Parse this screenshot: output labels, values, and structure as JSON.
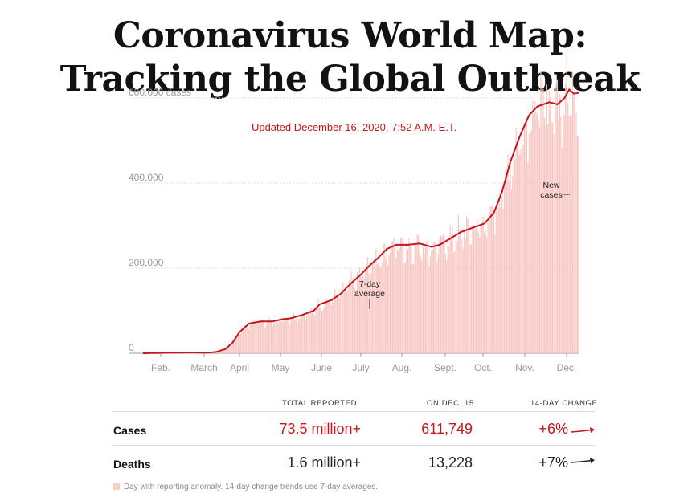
{
  "header": {
    "title_line1": "Coronavirus World Map:",
    "title_line2": "Tracking the Global Outbreak",
    "updated": "Updated December 16, 2020, 7:52 A.M. E.T."
  },
  "colors": {
    "accent": "#c4161c",
    "bars": "#f7c6c2",
    "anomaly": "#f7cfbb"
  },
  "chart_data": {
    "type": "bar",
    "y_tick_labels": [
      "0",
      "200,000",
      "400,000",
      "600,000 cases"
    ],
    "y_ticks": [
      0,
      200000,
      400000,
      600000
    ],
    "ylim": [
      0,
      700000
    ],
    "x_month_labels": [
      "Feb.",
      "March",
      "April",
      "May",
      "June",
      "July",
      "Aug.",
      "Sept.",
      "Oct.",
      "Nov.",
      "Dec."
    ],
    "annotations": {
      "new_cases": "New\ncases",
      "avg": "7-day\naverage"
    },
    "avg_anchor": [
      [
        0,
        0
      ],
      [
        20,
        1000
      ],
      [
        40,
        2000
      ],
      [
        50,
        1500
      ],
      [
        55,
        1500
      ],
      [
        62,
        3000
      ],
      [
        70,
        10000
      ],
      [
        76,
        25000
      ],
      [
        82,
        50000
      ],
      [
        90,
        70000
      ],
      [
        100,
        75000
      ],
      [
        110,
        75000
      ],
      [
        118,
        80000
      ],
      [
        125,
        82000
      ],
      [
        135,
        90000
      ],
      [
        145,
        100000
      ],
      [
        150,
        115000
      ],
      [
        160,
        125000
      ],
      [
        168,
        140000
      ],
      [
        175,
        160000
      ],
      [
        185,
        185000
      ],
      [
        192,
        205000
      ],
      [
        200,
        225000
      ],
      [
        207,
        245000
      ],
      [
        215,
        255000
      ],
      [
        225,
        255000
      ],
      [
        235,
        258000
      ],
      [
        245,
        250000
      ],
      [
        252,
        255000
      ],
      [
        260,
        268000
      ],
      [
        270,
        285000
      ],
      [
        280,
        295000
      ],
      [
        290,
        305000
      ],
      [
        298,
        330000
      ],
      [
        305,
        380000
      ],
      [
        312,
        450000
      ],
      [
        320,
        510000
      ],
      [
        328,
        560000
      ],
      [
        335,
        580000
      ],
      [
        345,
        590000
      ],
      [
        352,
        585000
      ],
      [
        358,
        600000
      ],
      [
        362,
        620000
      ],
      [
        366,
        610000
      ],
      [
        370,
        612000
      ]
    ],
    "series": [
      {
        "name": "New cases",
        "kind": "bar",
        "noise": 0.08
      },
      {
        "name": "7-day average",
        "kind": "line"
      }
    ]
  },
  "table": {
    "headers": {
      "total": "TOTAL REPORTED",
      "on_date": "ON DEC. 15",
      "change": "14-DAY CHANGE"
    },
    "rows": [
      {
        "label": "Cases",
        "total": "73.5 million+",
        "on_date": "611,749",
        "change": "+6%"
      },
      {
        "label": "Deaths",
        "total": "1.6 million+",
        "on_date": "13,228",
        "change": "+7%"
      }
    ],
    "footnote": "Day with reporting anomaly. 14-day change trends use 7-day averages."
  }
}
